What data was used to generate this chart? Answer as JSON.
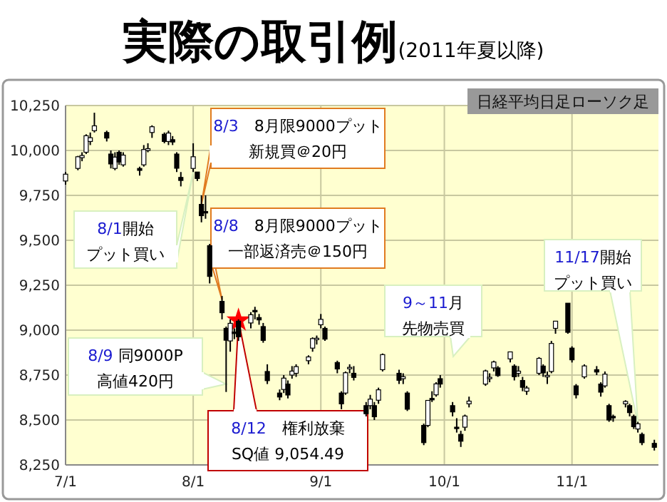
{
  "chart_data": {
    "type": "candlestick",
    "title": "実際の取引例(2011年夏以降)",
    "subtitle": "日経平均日足ローソク足",
    "x": [
      "2011-07-01",
      "2011-07-04",
      "2011-07-05",
      "2011-07-06",
      "2011-07-07",
      "2011-07-08",
      "2011-07-11",
      "2011-07-12",
      "2011-07-13",
      "2011-07-14",
      "2011-07-15",
      "2011-07-19",
      "2011-07-20",
      "2011-07-21",
      "2011-07-22",
      "2011-07-25",
      "2011-07-26",
      "2011-07-27",
      "2011-07-28",
      "2011-07-29",
      "2011-08-01",
      "2011-08-02",
      "2011-08-03",
      "2011-08-04",
      "2011-08-05",
      "2011-08-08",
      "2011-08-09",
      "2011-08-10",
      "2011-08-11",
      "2011-08-12",
      "2011-08-15",
      "2011-08-16",
      "2011-08-17",
      "2011-08-18",
      "2011-08-19",
      "2011-08-22",
      "2011-08-23",
      "2011-08-24",
      "2011-08-25",
      "2011-08-26",
      "2011-08-29",
      "2011-08-30",
      "2011-08-31",
      "2011-09-01",
      "2011-09-02",
      "2011-09-05",
      "2011-09-06",
      "2011-09-07",
      "2011-09-08",
      "2011-09-09",
      "2011-09-12",
      "2011-09-13",
      "2011-09-14",
      "2011-09-15",
      "2011-09-16",
      "2011-09-20",
      "2011-09-21",
      "2011-09-22",
      "2011-09-26",
      "2011-09-27",
      "2011-09-28",
      "2011-09-29",
      "2011-09-30",
      "2011-10-03",
      "2011-10-04",
      "2011-10-05",
      "2011-10-06",
      "2011-10-07",
      "2011-10-11",
      "2011-10-12",
      "2011-10-13",
      "2011-10-14",
      "2011-10-17",
      "2011-10-18",
      "2011-10-19",
      "2011-10-20",
      "2011-10-21",
      "2011-10-24",
      "2011-10-25",
      "2011-10-26",
      "2011-10-27",
      "2011-10-28",
      "2011-10-31",
      "2011-11-01",
      "2011-11-02",
      "2011-11-04",
      "2011-11-07",
      "2011-11-08",
      "2011-11-09",
      "2011-11-10",
      "2011-11-11",
      "2011-11-14",
      "2011-11-15",
      "2011-11-16",
      "2011-11-17",
      "2011-11-18",
      "2011-11-21"
    ],
    "ohlc": [
      [
        9830,
        9880,
        9810,
        9868
      ],
      [
        9900,
        9970,
        9890,
        9965
      ],
      [
        9960,
        9990,
        9940,
        9972
      ],
      [
        9990,
        10090,
        9980,
        10082
      ],
      [
        10050,
        10100,
        10030,
        10071
      ],
      [
        10110,
        10210,
        10100,
        10137
      ],
      [
        10100,
        10110,
        10050,
        10069
      ],
      [
        9980,
        10000,
        9900,
        9925
      ],
      [
        9900,
        9990,
        9890,
        9963
      ],
      [
        9990,
        10000,
        9920,
        9936
      ],
      [
        9920,
        9990,
        9910,
        9974
      ],
      [
        9900,
        9910,
        9860,
        9889
      ],
      [
        9920,
        10030,
        9910,
        10005
      ],
      [
        10000,
        10040,
        9990,
        10010
      ],
      [
        10100,
        10140,
        10070,
        10132
      ],
      [
        10090,
        10100,
        10040,
        10050
      ],
      [
        10050,
        10110,
        10030,
        10097
      ],
      [
        10060,
        10080,
        10030,
        10047
      ],
      [
        9980,
        9990,
        9880,
        9901
      ],
      [
        9850,
        9880,
        9800,
        9833
      ],
      [
        9900,
        10040,
        9880,
        9965
      ],
      [
        9880,
        9880,
        9830,
        9844
      ],
      [
        9700,
        9750,
        9600,
        9637
      ],
      [
        9660,
        9750,
        9620,
        9659
      ],
      [
        9470,
        9480,
        9260,
        9299
      ],
      [
        9160,
        9190,
        9060,
        9097
      ],
      [
        9010,
        9020,
        8656,
        8944
      ],
      [
        8940,
        9060,
        8880,
        9038
      ],
      [
        8990,
        9010,
        8950,
        8981
      ],
      [
        9050,
        9060,
        8940,
        8963
      ],
      [
        9040,
        9100,
        9010,
        9086
      ],
      [
        9110,
        9130,
        9060,
        9107
      ],
      [
        9070,
        9090,
        9030,
        9057
      ],
      [
        9020,
        9040,
        8930,
        8943
      ],
      [
        8770,
        8810,
        8700,
        8719
      ],
      [
        8650,
        8670,
        8610,
        8628
      ],
      [
        8670,
        8750,
        8650,
        8733
      ],
      [
        8700,
        8720,
        8620,
        8639
      ],
      [
        8750,
        8800,
        8730,
        8772
      ],
      [
        8760,
        8810,
        8740,
        8797
      ],
      [
        8830,
        8860,
        8810,
        8851
      ],
      [
        8900,
        8960,
        8880,
        8953
      ],
      [
        8950,
        8970,
        8920,
        8955
      ],
      [
        9030,
        9090,
        9010,
        9060
      ],
      [
        9010,
        9020,
        8940,
        8950
      ],
      [
        8820,
        8830,
        8760,
        8784
      ],
      [
        8650,
        8660,
        8560,
        8590
      ],
      [
        8650,
        8770,
        8640,
        8763
      ],
      [
        8790,
        8810,
        8760,
        8793
      ],
      [
        8760,
        8800,
        8720,
        8737
      ],
      [
        8580,
        8600,
        8520,
        8535
      ],
      [
        8580,
        8640,
        8560,
        8616
      ],
      [
        8580,
        8600,
        8500,
        8518
      ],
      [
        8610,
        8680,
        8590,
        8668
      ],
      [
        8780,
        8870,
        8770,
        8864
      ],
      [
        8760,
        8780,
        8700,
        8721
      ],
      [
        8730,
        8760,
        8700,
        8741
      ],
      [
        8650,
        8660,
        8550,
        8560
      ],
      [
        8470,
        8480,
        8360,
        8374
      ],
      [
        8470,
        8610,
        8460,
        8609
      ],
      [
        8620,
        8660,
        8600,
        8615
      ],
      [
        8640,
        8710,
        8630,
        8701
      ],
      [
        8730,
        8750,
        8680,
        8700
      ],
      [
        8580,
        8600,
        8520,
        8545
      ],
      [
        8460,
        8510,
        8430,
        8456
      ],
      [
        8420,
        8440,
        8350,
        8382
      ],
      [
        8460,
        8530,
        8440,
        8522
      ],
      [
        8590,
        8630,
        8570,
        8605
      ],
      [
        8700,
        8780,
        8690,
        8773
      ],
      [
        8730,
        8760,
        8710,
        8738
      ],
      [
        8790,
        8830,
        8770,
        8823
      ],
      [
        8790,
        8800,
        8740,
        8747
      ],
      [
        8840,
        8880,
        8820,
        8879
      ],
      [
        8800,
        8810,
        8720,
        8741
      ],
      [
        8760,
        8800,
        8740,
        8772
      ],
      [
        8720,
        8740,
        8660,
        8682
      ],
      [
        8660,
        8690,
        8640,
        8678
      ],
      [
        8760,
        8850,
        8750,
        8843
      ],
      [
        8800,
        8810,
        8740,
        8762
      ],
      [
        8740,
        8770,
        8700,
        8748
      ],
      [
        8770,
        8940,
        8760,
        8926
      ],
      [
        9010,
        9050,
        8980,
        9050
      ],
      [
        9150,
        9150,
        8980,
        8988
      ],
      [
        8900,
        8910,
        8820,
        8835
      ],
      [
        8690,
        8700,
        8620,
        8640
      ],
      [
        8740,
        8810,
        8730,
        8801
      ],
      [
        8780,
        8800,
        8750,
        8767
      ],
      [
        8700,
        8710,
        8630,
        8655
      ],
      [
        8690,
        8770,
        8680,
        8755
      ],
      [
        8580,
        8590,
        8490,
        8500
      ],
      [
        8520,
        8530,
        8490,
        8514
      ],
      [
        8590,
        8610,
        8570,
        8603
      ],
      [
        8580,
        8590,
        8520,
        8541
      ],
      [
        8520,
        8530,
        8450,
        8463
      ],
      [
        8450,
        8490,
        8430,
        8479
      ],
      [
        8420,
        8430,
        8360,
        8374
      ],
      [
        8370,
        8390,
        8330,
        8348
      ]
    ],
    "series": [
      {
        "type": "scatter",
        "x": [
          "2011-08-12"
        ],
        "values": [
          9054.49
        ],
        "color": "#ff0000",
        "marker": "star"
      }
    ],
    "xlim": [
      "2011-07-01",
      "2011-11-22"
    ],
    "xticks": [
      {
        "value": "2011-07-01",
        "label": "7/1"
      },
      {
        "value": "2011-08-01",
        "label": "8/1"
      },
      {
        "value": "2011-09-01",
        "label": "9/1"
      },
      {
        "value": "2011-10-01",
        "label": "10/1"
      },
      {
        "value": "2011-11-01",
        "label": "11/1"
      }
    ],
    "ylim": [
      8250,
      10250
    ],
    "yticks": [
      {
        "value": 8250,
        "label": "8,250"
      },
      {
        "value": 8500,
        "label": "8,500"
      },
      {
        "value": 8750,
        "label": "8,750"
      },
      {
        "value": 9000,
        "label": "9,000"
      },
      {
        "value": 9250,
        "label": "9,250"
      },
      {
        "value": 9500,
        "label": "9,500"
      },
      {
        "value": 9750,
        "label": "9,750"
      },
      {
        "value": 10000,
        "label": "10,000"
      },
      {
        "value": 10250,
        "label": "10,250"
      }
    ],
    "grid": true,
    "annotations": [
      {
        "text": "8/3　8月限9000プット新規買＠20円",
        "x": "2011-08-03",
        "y": 9700
      },
      {
        "text": "8/8　8月限9000プット一部返済売＠150円",
        "x": "2011-08-08",
        "y": 9170
      },
      {
        "text": "8/1開始プット買い",
        "x": "2011-08-01",
        "y": 9880
      },
      {
        "text": "8/9 同9000P 高値420円",
        "x": "2011-08-09",
        "y": 8700
      },
      {
        "text": "8/12　権利放棄 SQ値 9,054.49",
        "x": "2011-08-12",
        "y": 9054.49
      },
      "9～11月先物売買",
      {
        "text": "11/17開始プット買い",
        "x": "2011-11-17",
        "y": 8480
      }
    ]
  }
}
